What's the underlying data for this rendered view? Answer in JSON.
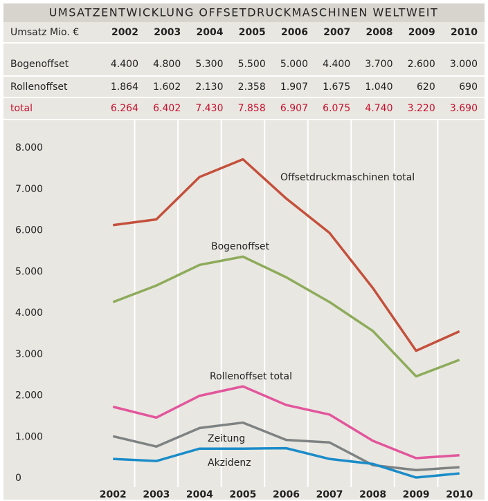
{
  "table": {
    "title": "UMSATZENTWICKLUNG OFFSETDRUCKMASCHINEN WELTWEIT",
    "header": [
      "Umsatz Mio. €",
      "2002",
      "2003",
      "2004",
      "2005",
      "2006",
      "2007",
      "2008",
      "2009",
      "2010"
    ],
    "rows": [
      [
        "Bogenoffset",
        "4.400",
        "4.800",
        "5.300",
        "5.500",
        "5.000",
        "4.400",
        "3.700",
        "2.600",
        "3.000"
      ],
      [
        "Rollenoffset",
        "1.864",
        "1.602",
        "2.130",
        "2.358",
        "1.907",
        "1.675",
        "1.040",
        "620",
        "690"
      ],
      [
        "total",
        "6.264",
        "6.402",
        "7.430",
        "7.858",
        "6.907",
        "6.075",
        "4.740",
        "3.220",
        "3.690"
      ]
    ]
  },
  "chart_data": {
    "type": "line",
    "categories": [
      "2002",
      "2003",
      "2004",
      "2005",
      "2006",
      "2007",
      "2008",
      "2009",
      "2010"
    ],
    "series": [
      {
        "name": "Offsetdruckmaschinen total",
        "color": "#c4503c",
        "values": [
          6264,
          6402,
          7430,
          7858,
          6907,
          6075,
          4740,
          3220,
          3690
        ]
      },
      {
        "name": "Bogenoffset",
        "color": "#8dab5b",
        "values": [
          4400,
          4800,
          5300,
          5500,
          5000,
          4400,
          3700,
          2600,
          3000
        ]
      },
      {
        "name": "Rollenoffset total",
        "color": "#e2569c",
        "values": [
          1864,
          1602,
          2130,
          2358,
          1907,
          1675,
          1040,
          620,
          690
        ]
      },
      {
        "name": "Zeitung",
        "color": "#7d8282",
        "values": [
          1150,
          900,
          1350,
          1480,
          1060,
          1000,
          450,
          330,
          400
        ]
      },
      {
        "name": "Akzidenz",
        "color": "#1b8cc9",
        "values": [
          600,
          550,
          850,
          850,
          860,
          600,
          480,
          150,
          250
        ]
      }
    ],
    "ylim": [
      0,
      8000
    ],
    "yticks": [
      {
        "value": 0,
        "label": "0"
      },
      {
        "value": 1000,
        "label": "1.000"
      },
      {
        "value": 2000,
        "label": "2.000"
      },
      {
        "value": 3000,
        "label": "3.000"
      },
      {
        "value": 4000,
        "label": "4.000"
      },
      {
        "value": 5000,
        "label": "5.000"
      },
      {
        "value": 6000,
        "label": "6.000"
      },
      {
        "value": 7000,
        "label": "7.000"
      },
      {
        "value": 8000,
        "label": "8.000"
      }
    ]
  }
}
